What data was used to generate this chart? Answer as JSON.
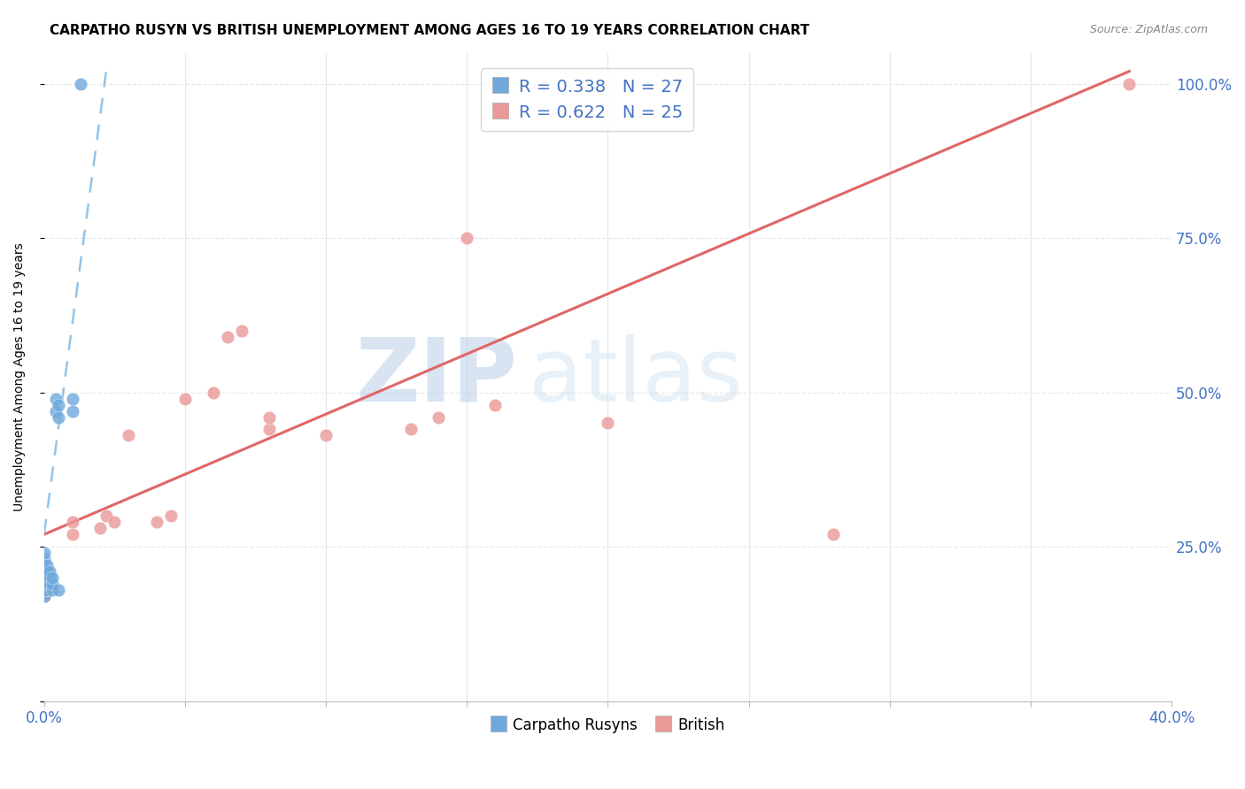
{
  "title": "CARPATHO RUSYN VS BRITISH UNEMPLOYMENT AMONG AGES 16 TO 19 YEARS CORRELATION CHART",
  "source": "Source: ZipAtlas.com",
  "ylabel": "Unemployment Among Ages 16 to 19 years",
  "xlim": [
    0.0,
    0.4
  ],
  "ylim": [
    0.0,
    1.05
  ],
  "xtick_vals": [
    0.0,
    0.05,
    0.1,
    0.15,
    0.2,
    0.25,
    0.3,
    0.35,
    0.4
  ],
  "xtick_labels": [
    "0.0%",
    "",
    "",
    "",
    "",
    "",
    "",
    "",
    "40.0%"
  ],
  "ytick_right_vals": [
    0.25,
    0.5,
    0.75,
    1.0
  ],
  "ytick_right_labels": [
    "25.0%",
    "50.0%",
    "75.0%",
    "100.0%"
  ],
  "legend_label1": "Carpatho Rusyns",
  "legend_label2": "British",
  "legend_r1": "R = 0.338   N = 27",
  "legend_r2": "R = 0.622   N = 25",
  "watermark_zip": "ZIP",
  "watermark_atlas": "atlas",
  "blue_color": "#6fa8dc",
  "pink_color": "#ea9999",
  "blue_line_color": "#93c4e8",
  "pink_line_color": "#e06666",
  "grid_color": "#e8e8e8",
  "title_fontsize": 11,
  "carpatho_x": [
    0.0,
    0.0,
    0.0,
    0.0,
    0.0,
    0.0,
    0.0,
    0.0,
    0.001,
    0.001,
    0.001,
    0.001,
    0.001,
    0.002,
    0.002,
    0.002,
    0.003,
    0.003,
    0.003,
    0.004,
    0.004,
    0.005,
    0.005,
    0.005,
    0.01,
    0.01,
    0.013
  ],
  "carpatho_y": [
    0.17,
    0.18,
    0.19,
    0.2,
    0.21,
    0.22,
    0.23,
    0.24,
    0.18,
    0.19,
    0.2,
    0.21,
    0.22,
    0.19,
    0.2,
    0.21,
    0.18,
    0.19,
    0.2,
    0.47,
    0.49,
    0.18,
    0.46,
    0.48,
    0.47,
    0.49,
    1.0
  ],
  "british_x": [
    0.0,
    0.0,
    0.0,
    0.01,
    0.01,
    0.02,
    0.022,
    0.025,
    0.03,
    0.04,
    0.045,
    0.05,
    0.06,
    0.065,
    0.07,
    0.08,
    0.08,
    0.1,
    0.13,
    0.14,
    0.15,
    0.16,
    0.2,
    0.28,
    0.385
  ],
  "british_y": [
    0.17,
    0.19,
    0.21,
    0.27,
    0.29,
    0.28,
    0.3,
    0.29,
    0.43,
    0.29,
    0.3,
    0.49,
    0.5,
    0.59,
    0.6,
    0.44,
    0.46,
    0.43,
    0.44,
    0.46,
    0.75,
    0.48,
    0.45,
    0.27,
    1.0
  ],
  "blue_trend_x": [
    0.0,
    0.022
  ],
  "blue_trend_y": [
    0.27,
    1.02
  ],
  "pink_trend_x": [
    0.0,
    0.385
  ],
  "pink_trend_y": [
    0.27,
    1.02
  ]
}
